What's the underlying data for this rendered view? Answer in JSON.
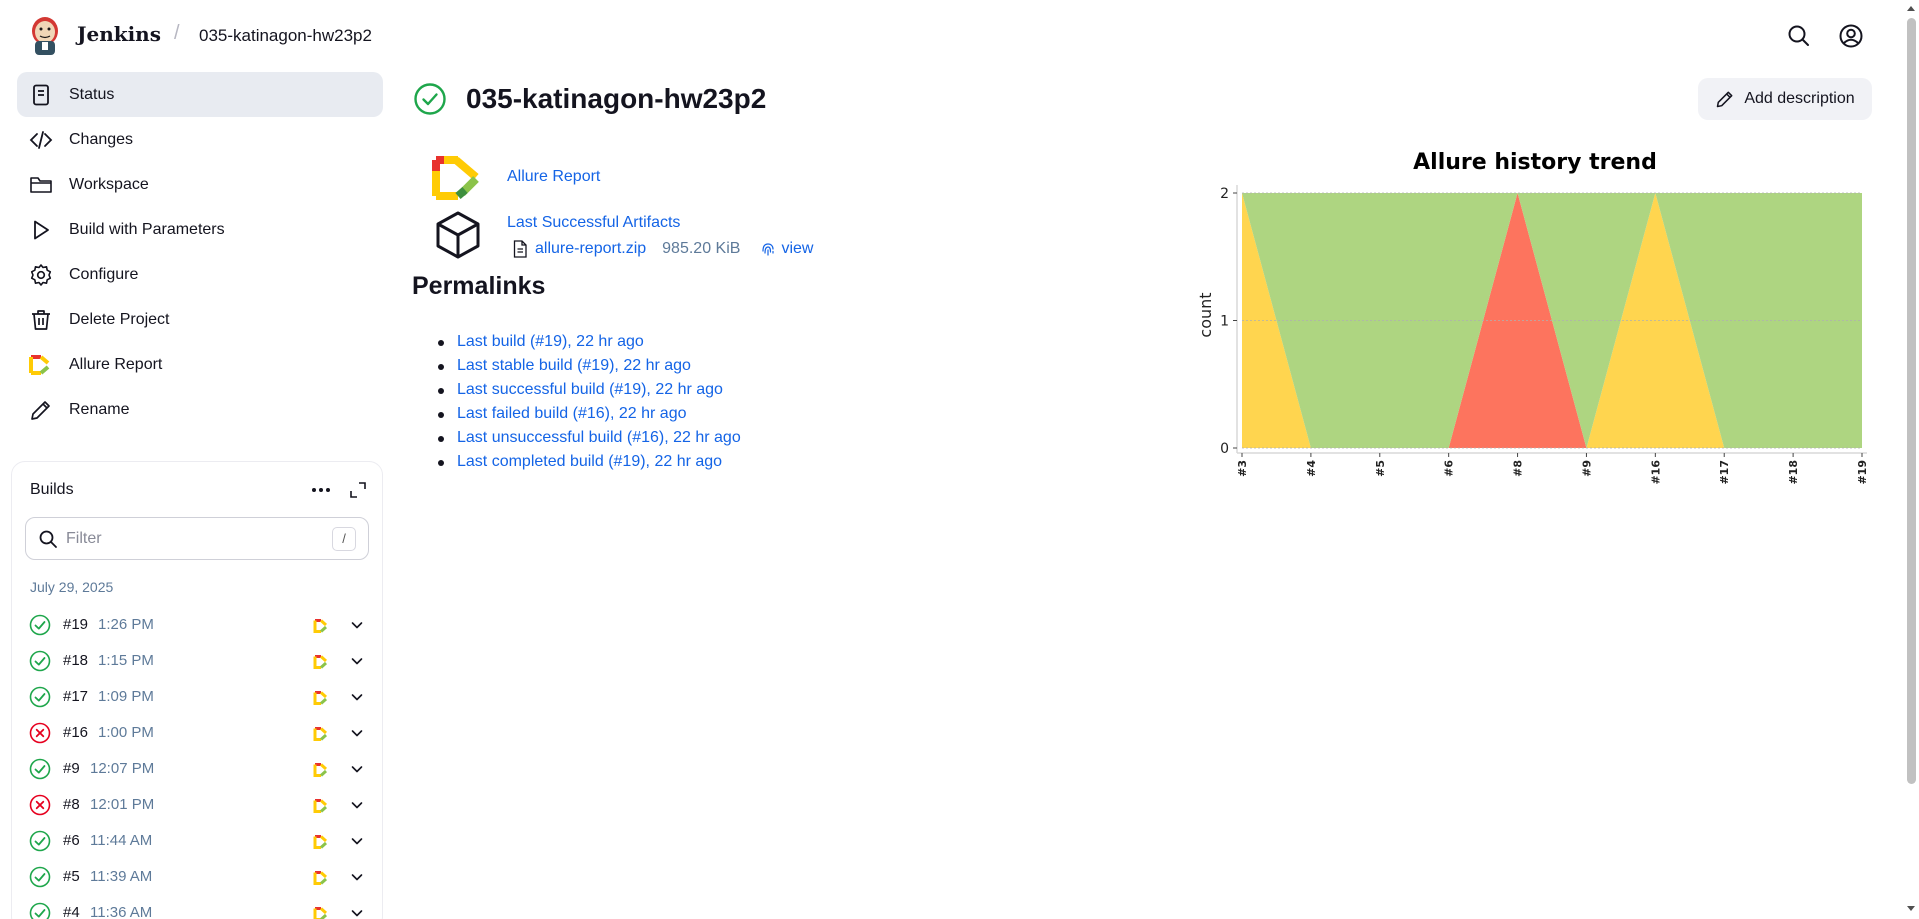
{
  "header": {
    "brand": "Jenkins",
    "breadcrumb": "035-katinagon-hw23p2",
    "separator": "/",
    "icons": [
      "search-icon",
      "account-icon"
    ]
  },
  "sidebar": {
    "items": [
      {
        "label": "Status",
        "icon": "status-icon"
      },
      {
        "label": "Changes",
        "icon": "code-icon"
      },
      {
        "label": "Workspace",
        "icon": "folder-icon"
      },
      {
        "label": "Build with Parameters",
        "icon": "play-icon"
      },
      {
        "label": "Configure",
        "icon": "gear-icon"
      },
      {
        "label": "Delete Project",
        "icon": "trash-icon"
      },
      {
        "label": "Allure Report",
        "icon": "allure-icon"
      },
      {
        "label": "Rename",
        "icon": "pencil-icon"
      }
    ]
  },
  "builds": {
    "title": "Builds",
    "filter_placeholder": "Filter",
    "filter_shortcut": "/",
    "date": "July 29, 2025",
    "rows": [
      {
        "number": "#19",
        "time": "1:26 PM",
        "status": "success"
      },
      {
        "number": "#18",
        "time": "1:15 PM",
        "status": "success"
      },
      {
        "number": "#17",
        "time": "1:09 PM",
        "status": "success"
      },
      {
        "number": "#16",
        "time": "1:00 PM",
        "status": "failed"
      },
      {
        "number": "#9",
        "time": "12:07 PM",
        "status": "success"
      },
      {
        "number": "#8",
        "time": "12:01 PM",
        "status": "failed"
      },
      {
        "number": "#6",
        "time": "11:44 AM",
        "status": "success"
      },
      {
        "number": "#5",
        "time": "11:39 AM",
        "status": "success"
      },
      {
        "number": "#4",
        "time": "11:36 AM",
        "status": "success"
      }
    ]
  },
  "main": {
    "title": "035-katinagon-hw23p2",
    "add_description": "Add description",
    "allure_link": "Allure Report",
    "artifacts_link": "Last Successful Artifacts",
    "artifact_file": "allure-report.zip",
    "artifact_size": "985.20 KiB",
    "artifact_view": "view",
    "permalinks_title": "Permalinks",
    "permalinks": [
      "Last build (#19), 22 hr ago",
      "Last stable build (#19), 22 hr ago",
      "Last successful build (#19), 22 hr ago",
      "Last failed build (#16), 22 hr ago",
      "Last unsuccessful build (#16), 22 hr ago",
      "Last completed build (#19), 22 hr ago"
    ]
  },
  "colors": {
    "success": "#1ea64b",
    "failed": "#e6001f",
    "link": "#1464e6",
    "passed_area": "#aed581",
    "broken_area": "#ffd54f",
    "failed_area": "#fd745e"
  },
  "chart_data": {
    "type": "area",
    "title": "Allure history trend",
    "xlabel": "",
    "ylabel": "count",
    "categories": [
      "#3",
      "#4",
      "#5",
      "#6",
      "#8",
      "#9",
      "#16",
      "#17",
      "#18",
      "#19"
    ],
    "ylim": [
      0,
      2
    ],
    "yticks": [
      0,
      1,
      2
    ],
    "stacked": true,
    "grid": true,
    "series": [
      {
        "key": "failed",
        "color": "#fd745e",
        "values": [
          0,
          0,
          0,
          0,
          2,
          0,
          0,
          0,
          0,
          0
        ]
      },
      {
        "key": "broken",
        "color": "#ffd54f",
        "values": [
          2,
          0,
          0,
          0,
          0,
          0,
          2,
          0,
          0,
          0
        ]
      },
      {
        "key": "passed",
        "color": "#aed581",
        "values": [
          0,
          2,
          2,
          2,
          0,
          2,
          0,
          2,
          2,
          2
        ]
      }
    ]
  }
}
